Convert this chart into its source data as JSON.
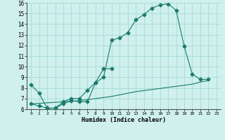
{
  "xlabel": "Humidex (Indice chaleur)",
  "background_color": "#cff0ec",
  "grid_color": "#aaddda",
  "line_color": "#1a7a6e",
  "xlim": [
    -0.5,
    23.5
  ],
  "ylim": [
    6,
    16
  ],
  "xticks": [
    0,
    1,
    2,
    3,
    4,
    5,
    6,
    7,
    8,
    9,
    10,
    11,
    12,
    13,
    14,
    15,
    16,
    17,
    18,
    19,
    20,
    21,
    22,
    23
  ],
  "yticks": [
    6,
    7,
    8,
    9,
    10,
    11,
    12,
    13,
    14,
    15,
    16
  ],
  "series": [
    {
      "x": [
        0,
        1,
        2,
        3,
        4,
        5,
        6,
        7,
        8,
        9,
        10,
        11,
        12,
        13,
        14,
        15,
        16,
        17,
        18,
        19,
        20,
        21,
        22
      ],
      "y": [
        6.5,
        6.3,
        6.1,
        6.1,
        6.5,
        6.8,
        6.7,
        6.7,
        8.5,
        9.0,
        12.5,
        12.7,
        13.2,
        14.4,
        14.9,
        15.5,
        15.8,
        15.9,
        15.3,
        11.9,
        9.3,
        8.8,
        8.8
      ],
      "marker": "D",
      "markersize": 2.5
    },
    {
      "x": [
        0,
        1,
        2,
        3,
        4,
        5,
        6,
        7,
        8,
        9,
        10
      ],
      "y": [
        8.3,
        7.5,
        6.1,
        6.1,
        6.7,
        7.0,
        7.0,
        7.8,
        8.5,
        9.8,
        9.8
      ],
      "marker": "D",
      "markersize": 2.5
    },
    {
      "x": [
        0,
        1,
        2,
        3,
        4,
        5,
        6,
        7,
        8,
        9,
        10,
        11,
        12,
        13,
        14,
        15,
        16,
        17,
        18,
        19,
        20,
        21,
        22
      ],
      "y": [
        6.5,
        6.55,
        6.6,
        6.65,
        6.7,
        6.75,
        6.8,
        6.9,
        7.0,
        7.1,
        7.2,
        7.35,
        7.5,
        7.65,
        7.75,
        7.85,
        7.95,
        8.05,
        8.15,
        8.25,
        8.35,
        8.55,
        8.7
      ],
      "marker": null,
      "markersize": 0
    }
  ]
}
